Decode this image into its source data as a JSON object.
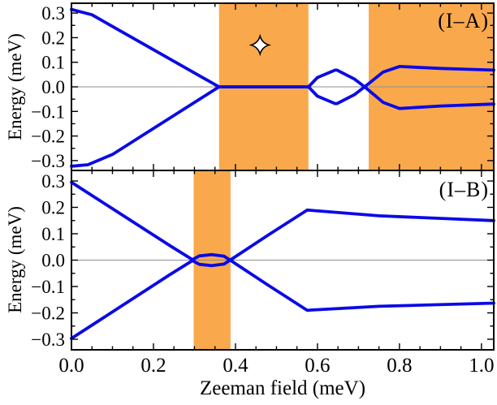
{
  "figure": {
    "xlabel": "Zeeman field (meV)",
    "colors": {
      "curve": "#0A0AE6",
      "shade": "#F9A84C",
      "zero_line": "#8F8F8F",
      "frame": "#000000",
      "background": "#FFFFFF",
      "marker_fill": "#FFFFFF",
      "marker_stroke": "#000000"
    }
  },
  "chart_data": [
    {
      "type": "line",
      "panel": "top",
      "label": "(I–A)",
      "ylabel": "Energy (meV)",
      "xlabel": "Zeeman field (meV)",
      "xlim": [
        0,
        1.03
      ],
      "ylim": [
        -0.34,
        0.34
      ],
      "xticks": [
        0,
        0.2,
        0.4,
        0.6,
        0.8,
        1.0
      ],
      "yticks": [
        0.3,
        0.2,
        0.1,
        0.0,
        -0.1,
        -0.2,
        -0.3
      ],
      "x_show_tick_labels": false,
      "grid": false,
      "shaded_regions": [
        [
          0.36,
          0.578
        ],
        [
          0.725,
          1.03
        ]
      ],
      "marker": {
        "shape": "four-point-star",
        "x": 0.46,
        "y": 0.17
      },
      "series": [
        {
          "name": "upper-branch",
          "points": [
            [
              0,
              0.315
            ],
            [
              0.05,
              0.293
            ],
            [
              0.36,
              0.0
            ],
            [
              0.578,
              0.0
            ],
            [
              0.6,
              0.038
            ],
            [
              0.643,
              0.068
            ],
            [
              0.648,
              0.068
            ],
            [
              0.69,
              0.032
            ],
            [
              0.715,
              0.0
            ],
            [
              0.76,
              0.06
            ],
            [
              0.8,
              0.083
            ],
            [
              0.9,
              0.075
            ],
            [
              1.03,
              0.068
            ]
          ]
        },
        {
          "name": "lower-branch",
          "points": [
            [
              0,
              -0.323
            ],
            [
              0.04,
              -0.317
            ],
            [
              0.1,
              -0.275
            ],
            [
              0.36,
              0.0
            ],
            [
              0.578,
              0.0
            ],
            [
              0.6,
              -0.038
            ],
            [
              0.643,
              -0.068
            ],
            [
              0.648,
              -0.068
            ],
            [
              0.69,
              -0.032
            ],
            [
              0.715,
              0.0
            ],
            [
              0.76,
              -0.063
            ],
            [
              0.8,
              -0.088
            ],
            [
              0.9,
              -0.078
            ],
            [
              1.03,
              -0.07
            ]
          ]
        }
      ]
    },
    {
      "type": "line",
      "panel": "bottom",
      "label": "(I–B)",
      "ylabel": "Energy (meV)",
      "xlabel": "Zeeman field (meV)",
      "xlim": [
        0,
        1.03
      ],
      "ylim": [
        -0.34,
        0.34
      ],
      "xticks": [
        0,
        0.2,
        0.4,
        0.6,
        0.8,
        1.0
      ],
      "yticks": [
        0.3,
        0.2,
        0.1,
        0.0,
        -0.1,
        -0.2,
        -0.3
      ],
      "x_show_tick_labels": true,
      "grid": false,
      "shaded_regions": [
        [
          0.298,
          0.388
        ]
      ],
      "series": [
        {
          "name": "upper-branch",
          "points": [
            [
              0,
              0.295
            ],
            [
              0.24,
              0.055
            ],
            [
              0.295,
              0.002
            ],
            [
              0.312,
              0.016
            ],
            [
              0.3425,
              0.021
            ],
            [
              0.372,
              0.015
            ],
            [
              0.387,
              0.0
            ],
            [
              0.48,
              0.095
            ],
            [
              0.575,
              0.19
            ],
            [
              0.75,
              0.168
            ],
            [
              1.03,
              0.15
            ]
          ]
        },
        {
          "name": "lower-branch",
          "points": [
            [
              0,
              -0.297
            ],
            [
              0.24,
              -0.055
            ],
            [
              0.295,
              -0.002
            ],
            [
              0.312,
              -0.016
            ],
            [
              0.3425,
              -0.021
            ],
            [
              0.372,
              -0.015
            ],
            [
              0.387,
              0.0
            ],
            [
              0.48,
              -0.095
            ],
            [
              0.575,
              -0.19
            ],
            [
              0.75,
              -0.175
            ],
            [
              1.03,
              -0.163
            ]
          ]
        }
      ]
    }
  ]
}
